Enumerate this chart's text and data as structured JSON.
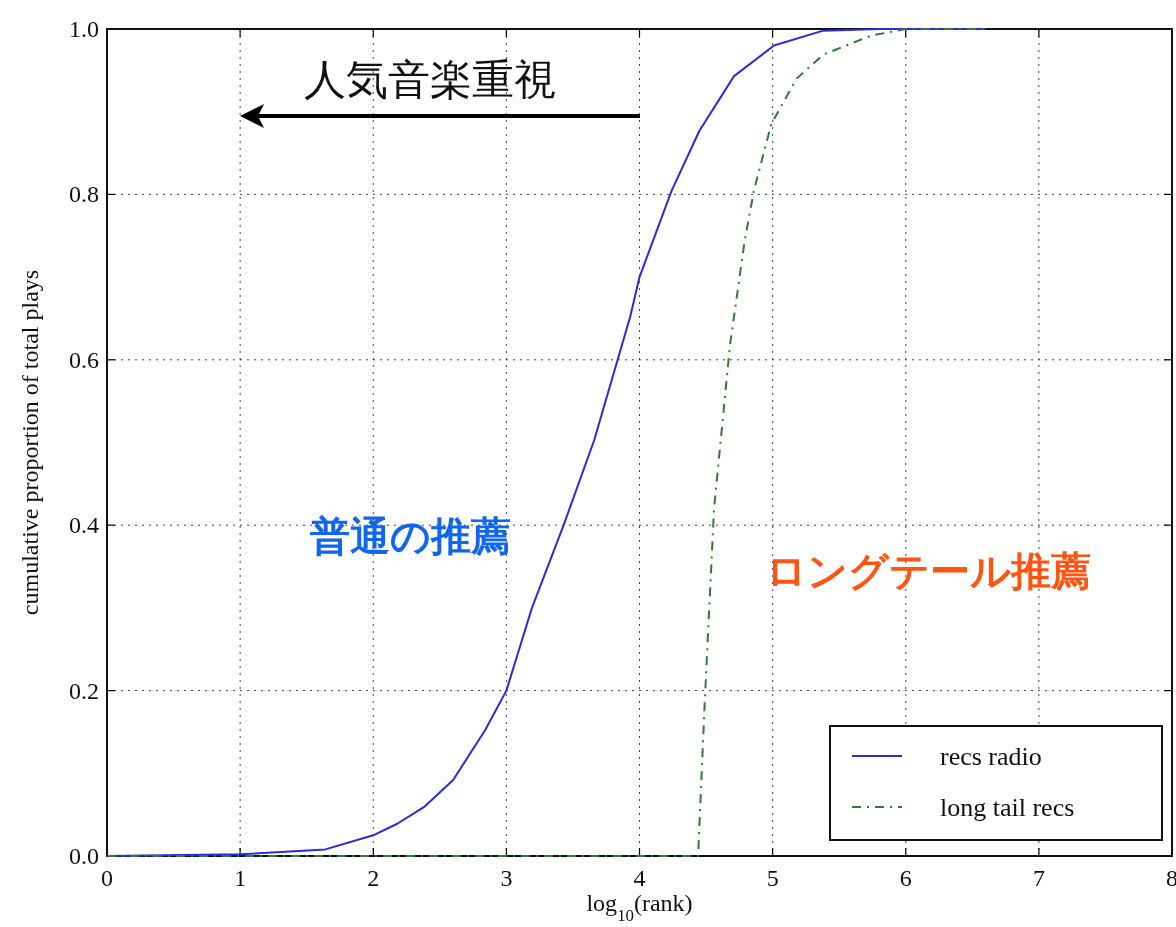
{
  "chart_data": {
    "type": "line",
    "xlabel": "log$_{10}$(rank)",
    "ylabel": "cumulative proportion of total plays",
    "xlim": [
      0,
      8
    ],
    "ylim": [
      0,
      1
    ],
    "xticks": [
      0,
      1,
      2,
      3,
      4,
      5,
      6,
      7,
      8
    ],
    "yticks": [
      {
        "value": 0,
        "label": "0.0"
      },
      0.2,
      0.4,
      0.6,
      0.8,
      {
        "value": 1,
        "label": "1.0"
      }
    ],
    "grid": true,
    "legend": "bottom right",
    "annotations": [
      "人気音楽重視",
      "普通の推薦",
      "ロングテール推薦"
    ],
    "series": [
      {
        "name": "recs radio",
        "color": "#2b2bd9",
        "line_style": "solid",
        "x": [
          0,
          1,
          1.64,
          2,
          2.18,
          2.38,
          2.6,
          2.84,
          3,
          3.19,
          3.43,
          3.66,
          3.93,
          4,
          4.24,
          4.45,
          4.71,
          5.01,
          5.38,
          5.8,
          6.6
        ],
        "values": [
          0,
          0.002,
          0.008,
          0.025,
          0.039,
          0.059,
          0.092,
          0.152,
          0.2,
          0.299,
          0.4,
          0.503,
          0.652,
          0.7,
          0.804,
          0.877,
          0.943,
          0.98,
          0.998,
          1,
          1
        ]
      },
      {
        "name": "long tail recs",
        "color": "#2e7d32",
        "line_style": "dashed",
        "x": [
          0,
          4.44,
          4.49,
          4.56,
          4.68,
          4.79,
          4.86,
          4.99,
          5.18,
          5.38,
          5.74,
          6,
          6.6
        ],
        "values": [
          0,
          0,
          0.186,
          0.42,
          0.618,
          0.744,
          0.805,
          0.885,
          0.94,
          0.969,
          0.992,
          1,
          1
        ]
      }
    ]
  }
}
